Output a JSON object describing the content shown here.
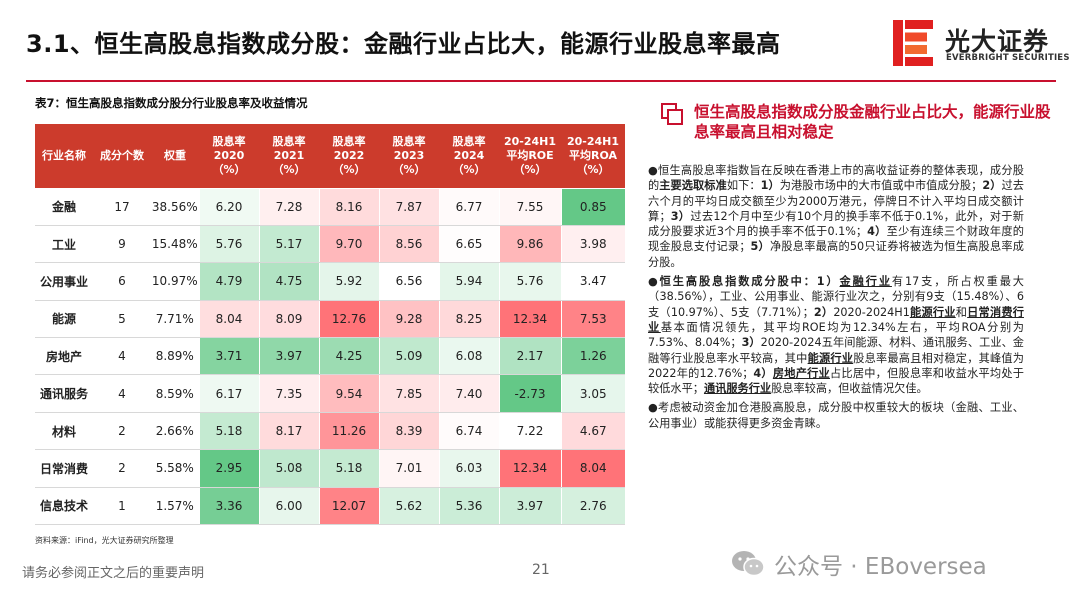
{
  "slide": {
    "title": "3.1、恒生高股息指数成分股：金融行业占比大，能源行业股息率最高",
    "logo_cn": "光大证券",
    "logo_en": "EVERBRIGHT SECURITIES",
    "colors": {
      "accent": "#c8102e",
      "header_bg": "#cc3b2c"
    }
  },
  "table": {
    "caption": "表7：恒生高股息指数成分股分行业股息率及收益情况",
    "headers": [
      "行业名称",
      "成分个数",
      "权重",
      "股息率 2020（%）",
      "股息率 2021（%）",
      "股息率 2022（%）",
      "股息率 2023（%）",
      "股息率 2024（%）",
      "20-24H1 平均ROE （%）",
      "20-24H1 平均ROA （%）"
    ],
    "rows": [
      {
        "name": "金融",
        "count": "17",
        "weight": "38.56%",
        "v": [
          "6.20",
          "7.28",
          "8.16",
          "7.87",
          "6.77",
          "7.55",
          "0.85"
        ]
      },
      {
        "name": "工业",
        "count": "9",
        "weight": "15.48%",
        "v": [
          "5.76",
          "5.17",
          "9.70",
          "8.56",
          "6.65",
          "9.86",
          "3.98"
        ]
      },
      {
        "name": "公用事业",
        "count": "6",
        "weight": "10.97%",
        "v": [
          "4.79",
          "4.75",
          "5.92",
          "6.56",
          "5.94",
          "5.76",
          "3.47"
        ]
      },
      {
        "name": "能源",
        "count": "5",
        "weight": "7.71%",
        "v": [
          "8.04",
          "8.09",
          "12.76",
          "9.28",
          "8.25",
          "12.34",
          "7.53"
        ]
      },
      {
        "name": "房地产",
        "count": "4",
        "weight": "8.89%",
        "v": [
          "3.71",
          "3.97",
          "4.25",
          "5.09",
          "6.08",
          "2.17",
          "1.26"
        ]
      },
      {
        "name": "通讯服务",
        "count": "4",
        "weight": "8.59%",
        "v": [
          "6.17",
          "7.35",
          "9.54",
          "7.85",
          "7.40",
          "-2.73",
          "3.05"
        ]
      },
      {
        "name": "材料",
        "count": "2",
        "weight": "2.66%",
        "v": [
          "5.18",
          "8.17",
          "11.26",
          "8.39",
          "6.74",
          "7.22",
          "4.67"
        ]
      },
      {
        "name": "日常消费",
        "count": "2",
        "weight": "5.58%",
        "v": [
          "2.95",
          "5.08",
          "5.18",
          "7.01",
          "6.03",
          "12.34",
          "8.04"
        ]
      },
      {
        "name": "信息技术",
        "count": "1",
        "weight": "1.57%",
        "v": [
          "3.36",
          "6.00",
          "12.07",
          "5.62",
          "5.36",
          "3.97",
          "2.76"
        ]
      }
    ],
    "source": "资料来源：iFind，光大证券研究所整理"
  },
  "right": {
    "heading": "恒生高股息指数成分股金融行业占比大，能源行业股息率最高且相对稳定",
    "b1": {
      "p1": "●恒生高股息率指数旨在反映在香港上市的高收益证券的整体表现，成分股的",
      "bold1": "主要选取标准",
      "p2": "如下：",
      "bold2": "1）",
      "p3": "为港股市场中的大市值或中市值成分股；",
      "bold3": "2）",
      "p4": "过去六个月的平均日成交额至少为2000万港元，停牌日不计入平均日成交额计算；",
      "bold4": "3）",
      "p5": "过去12个月中至少有10个月的换手率不低于0.1%，此外，对于新成分股要求近3个月的换手率不低于0.1%；",
      "bold5": "4）",
      "p6": "至少有连续三个财政年度的现金股息支付记录；",
      "bold6": "5）",
      "p7": "净股息率最高的50只证券将被选为恒生高股息率成分股。"
    },
    "b2": {
      "bold0": "●恒生高股息指数成分股中：1）",
      "u1": "金融行业",
      "p1": "有17支，所占权重最大（38.56%），工业、公用事业、能源行业次之，分别有9支（15.48%）、6支（10.97%）、5支（7.71%）；",
      "bold2": "2）",
      "p2": "2020-2024H1",
      "u2": "能源行业",
      "p3": "和",
      "u3": "日常消费行业",
      "p4": "基本面情况领先，其平均ROE均为12.34%左右，平均ROA分别为7.53%、8.04%；",
      "bold3": "3）",
      "p5": "2020-2024五年间能源、材料、通讯服务、工业、金融等行业股息率水平较高，其中",
      "u4": "能源行业",
      "p6": "股息率最高且相对稳定，其峰值为2022年的12.76%；",
      "bold4": "4）",
      "u5": "房地产行业",
      "p7": "占比居中，但股息率和收益水平均处于较低水平；",
      "u6": "通讯服务行业",
      "p8": "股息率较高，但收益情况欠佳。"
    },
    "b3": "●考虑被动资金加仓港股高股息，成分股中权重较大的板块（金融、工业、公用事业）或能获得更多资金青睐。"
  },
  "footer": {
    "disclaimer": "请务必参阅正文之后的重要声明",
    "page": "21",
    "watermark": "公众号 · EBoversea"
  }
}
